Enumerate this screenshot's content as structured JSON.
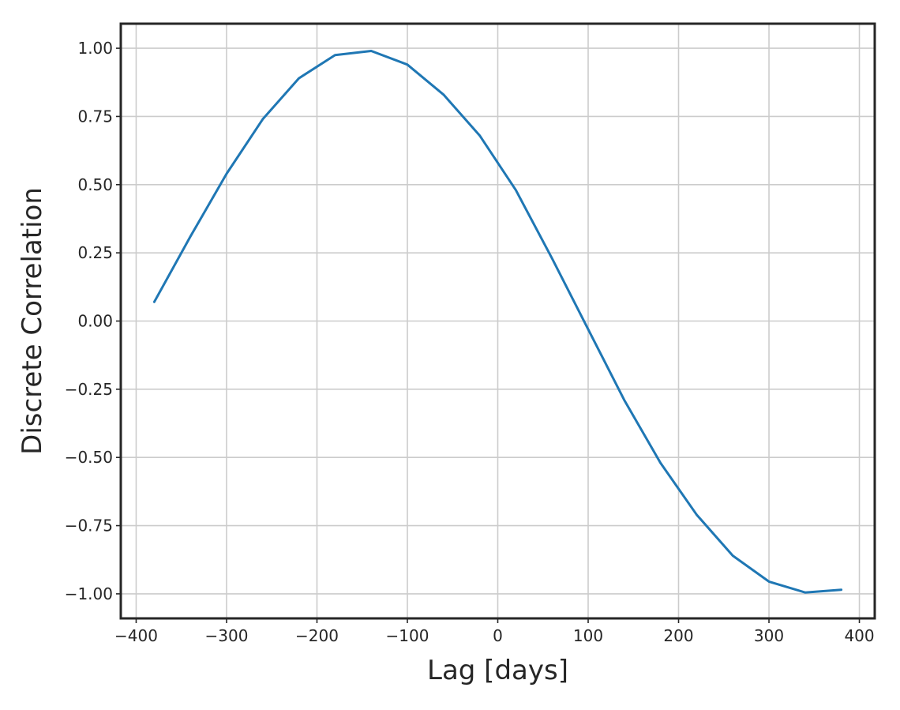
{
  "chart_data": {
    "type": "line",
    "title": "",
    "xlabel": "Lag [days]",
    "ylabel": "Discrete Correlation",
    "xlim": [
      -417,
      417
    ],
    "ylim": [
      -1.09,
      1.09
    ],
    "grid": true,
    "legend": "none",
    "x_ticks": [
      -400,
      -300,
      -200,
      -100,
      0,
      100,
      200,
      300,
      400
    ],
    "x_tick_labels": [
      "−400",
      "−300",
      "−200",
      "−100",
      "0",
      "100",
      "200",
      "300",
      "400"
    ],
    "y_ticks": [
      1.0,
      0.75,
      0.5,
      0.25,
      0.0,
      -0.25,
      -0.5,
      -0.75,
      -1.0
    ],
    "y_tick_labels": [
      "1.00",
      "0.75",
      "0.50",
      "0.25",
      "0.00",
      "−0.25",
      "−0.50",
      "−0.75",
      "−1.00"
    ],
    "series": [
      {
        "color": "#1f77b4",
        "x": [
          -380,
          -340,
          -300,
          -260,
          -220,
          -180,
          -140,
          -100,
          -60,
          -20,
          20,
          60,
          100,
          140,
          180,
          220,
          260,
          300,
          340,
          380
        ],
        "y": [
          0.07,
          0.31,
          0.54,
          0.74,
          0.89,
          0.975,
          0.99,
          0.94,
          0.83,
          0.68,
          0.48,
          0.23,
          -0.03,
          -0.29,
          -0.52,
          -0.71,
          -0.86,
          -0.955,
          -0.995,
          -0.985
        ]
      }
    ]
  }
}
